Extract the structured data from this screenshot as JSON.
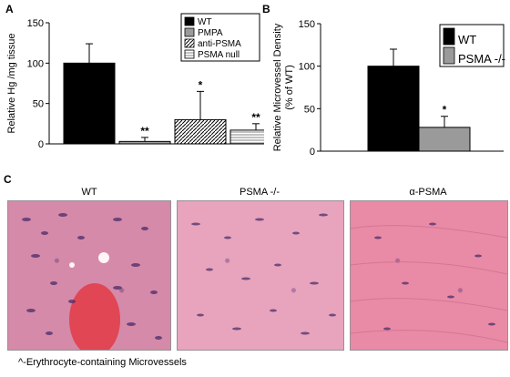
{
  "panel_labels": {
    "a": "A",
    "b": "B",
    "c": "C"
  },
  "chart_data": [
    {
      "type": "bar",
      "panel": "A",
      "ylabel": "Relative Hg /mg tissue",
      "ylim": [
        0,
        150
      ],
      "yticks": [
        0,
        50,
        100,
        150
      ],
      "categories": [
        "WT",
        "PMPA",
        "anti-PSMA",
        "PSMA null"
      ],
      "values": [
        100,
        3,
        30,
        17
      ],
      "errors": [
        24,
        5,
        35,
        8
      ],
      "annotations": [
        "",
        "**",
        "*",
        "**"
      ],
      "legend": [
        {
          "label": "WT",
          "fill": "#000000",
          "pattern": "solid"
        },
        {
          "label": "PMPA",
          "fill": "#9a9a9a",
          "pattern": "solid"
        },
        {
          "label": "anti-PSMA",
          "fill": "#ffffff",
          "pattern": "diagonal"
        },
        {
          "label": "PSMA null",
          "fill": "#ffffff",
          "pattern": "horizontal"
        }
      ],
      "legend_position": "top-right"
    },
    {
      "type": "bar",
      "panel": "B",
      "ylabel_lines": [
        "Relative Microvessel Density",
        "(% of WT)"
      ],
      "ylim": [
        0,
        150
      ],
      "yticks": [
        0,
        50,
        100,
        150
      ],
      "categories": [
        "WT",
        "PSMA -/-"
      ],
      "values": [
        100,
        28
      ],
      "errors": [
        20,
        13
      ],
      "annotations": [
        "",
        "*"
      ],
      "legend": [
        {
          "label": "WT",
          "fill": "#000000",
          "pattern": "solid"
        },
        {
          "label": "PSMA -/-",
          "fill": "#9a9a9a",
          "pattern": "solid"
        }
      ],
      "legend_position": "top-right"
    }
  ],
  "micrographs": [
    {
      "title": "WT"
    },
    {
      "title": "PSMA -/-"
    },
    {
      "title": "α-PSMA"
    }
  ],
  "footnote": "^-Erythrocyte-containing Microvessels"
}
